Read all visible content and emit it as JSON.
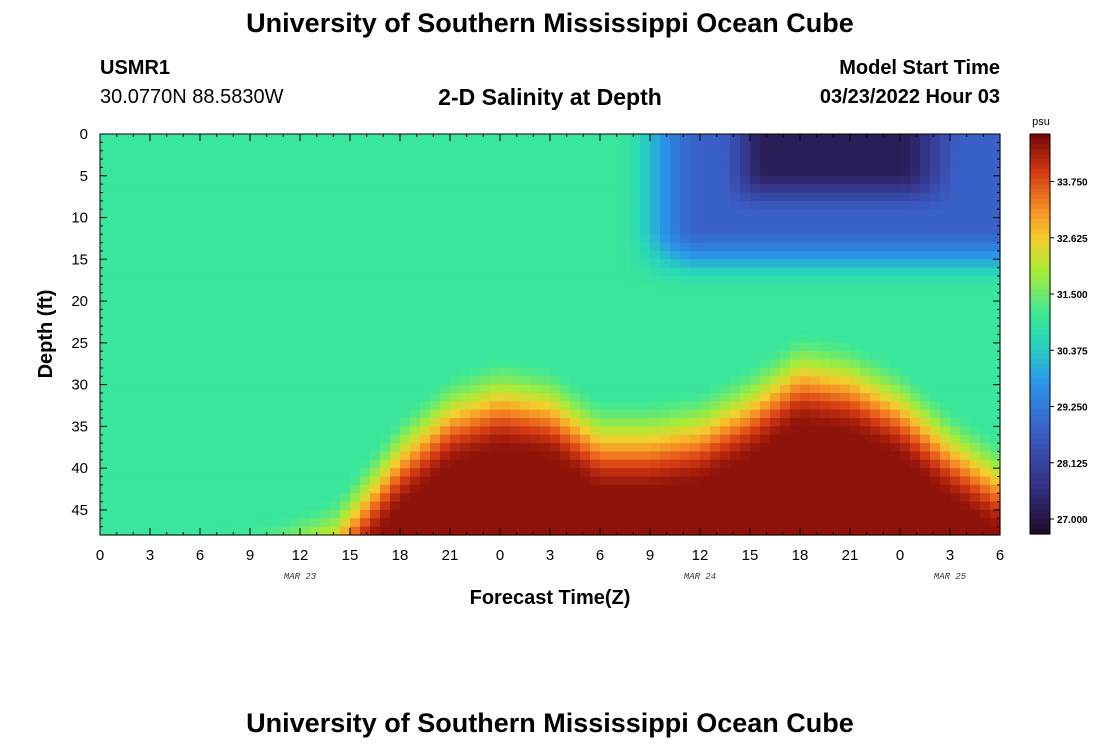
{
  "header": {
    "title": "University of Southern Mississippi Ocean Cube",
    "station_id": "USMR1",
    "location": "30.0770N  88.5830W",
    "plot_title": "2-D Salinity at Depth",
    "model_start_label": "Model Start Time",
    "model_start_value": "03/23/2022 Hour 03",
    "footer_title": "University of Southern Mississippi Ocean Cube"
  },
  "chart_data": {
    "type": "heatmap",
    "title": "2-D Salinity at Depth",
    "xlabel": "Forecast Time(Z)",
    "ylabel": "Depth (ft)",
    "x_tick_labels": [
      "0",
      "3",
      "6",
      "9",
      "12",
      "15",
      "18",
      "21",
      "0",
      "3",
      "6",
      "9",
      "12",
      "15",
      "18",
      "21",
      "0",
      "3",
      "6"
    ],
    "x_date_labels": [
      {
        "text": "MAR 23",
        "tick_index": 4
      },
      {
        "text": "MAR 24",
        "tick_index": 12
      },
      {
        "text": "MAR 25",
        "tick_index": 17
      }
    ],
    "x_range_hours": [
      0,
      54
    ],
    "y_tick_labels": [
      "0",
      "5",
      "10",
      "15",
      "20",
      "25",
      "30",
      "35",
      "40",
      "45"
    ],
    "y_range_ft": [
      0,
      48
    ],
    "colorbar": {
      "unit": "psu",
      "min": 26.7,
      "max": 34.7,
      "ticks": [
        "33.750",
        "32.625",
        "31.500",
        "30.375",
        "29.250",
        "28.125",
        "27.000"
      ],
      "tick_values": [
        33.75,
        32.625,
        31.5,
        30.375,
        29.25,
        28.125,
        27.0
      ]
    },
    "field_model": {
      "description": "approximate salinity (psu) read from the color field",
      "surface_fresh_layer": {
        "start_hour": 31,
        "full_hour": 36,
        "max_depth_ft": 19,
        "value": 28.8
      },
      "fresh_core": {
        "start_hour": 37,
        "max_depth_ft": 10,
        "value": 27.2
      },
      "background_value": 31.0,
      "bottom_salt_value": 34.5,
      "bottom_salt_top_depth_ft": [
        [
          0,
          54
        ],
        [
          5,
          52
        ],
        [
          10,
          50
        ],
        [
          14,
          47
        ],
        [
          16,
          42
        ],
        [
          18,
          37
        ],
        [
          21,
          32
        ],
        [
          24,
          30
        ],
        [
          27,
          31
        ],
        [
          30,
          35
        ],
        [
          33,
          35
        ],
        [
          36,
          34
        ],
        [
          39,
          31
        ],
        [
          42,
          27
        ],
        [
          45,
          28
        ],
        [
          48,
          31
        ],
        [
          51,
          36
        ],
        [
          54,
          40
        ]
      ]
    }
  }
}
